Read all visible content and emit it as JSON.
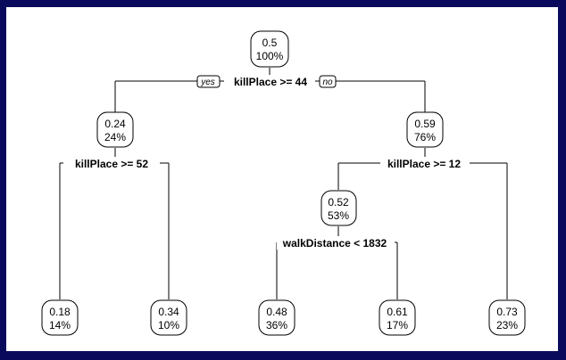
{
  "tree": {
    "root": {
      "value": "0.5",
      "pct": "100%"
    },
    "root_split": {
      "label": "killPlace >= 44",
      "yes": "yes",
      "no": "no"
    },
    "left": {
      "value": "0.24",
      "pct": "24%",
      "split": "killPlace >= 52"
    },
    "right": {
      "value": "0.59",
      "pct": "76%",
      "split": "killPlace >= 12"
    },
    "right_left": {
      "value": "0.52",
      "pct": "53%",
      "split": "walkDistance < 1832"
    },
    "leaves": [
      {
        "value": "0.18",
        "pct": "14%"
      },
      {
        "value": "0.34",
        "pct": "10%"
      },
      {
        "value": "0.48",
        "pct": "36%"
      },
      {
        "value": "0.61",
        "pct": "17%"
      },
      {
        "value": "0.73",
        "pct": "23%"
      }
    ]
  }
}
